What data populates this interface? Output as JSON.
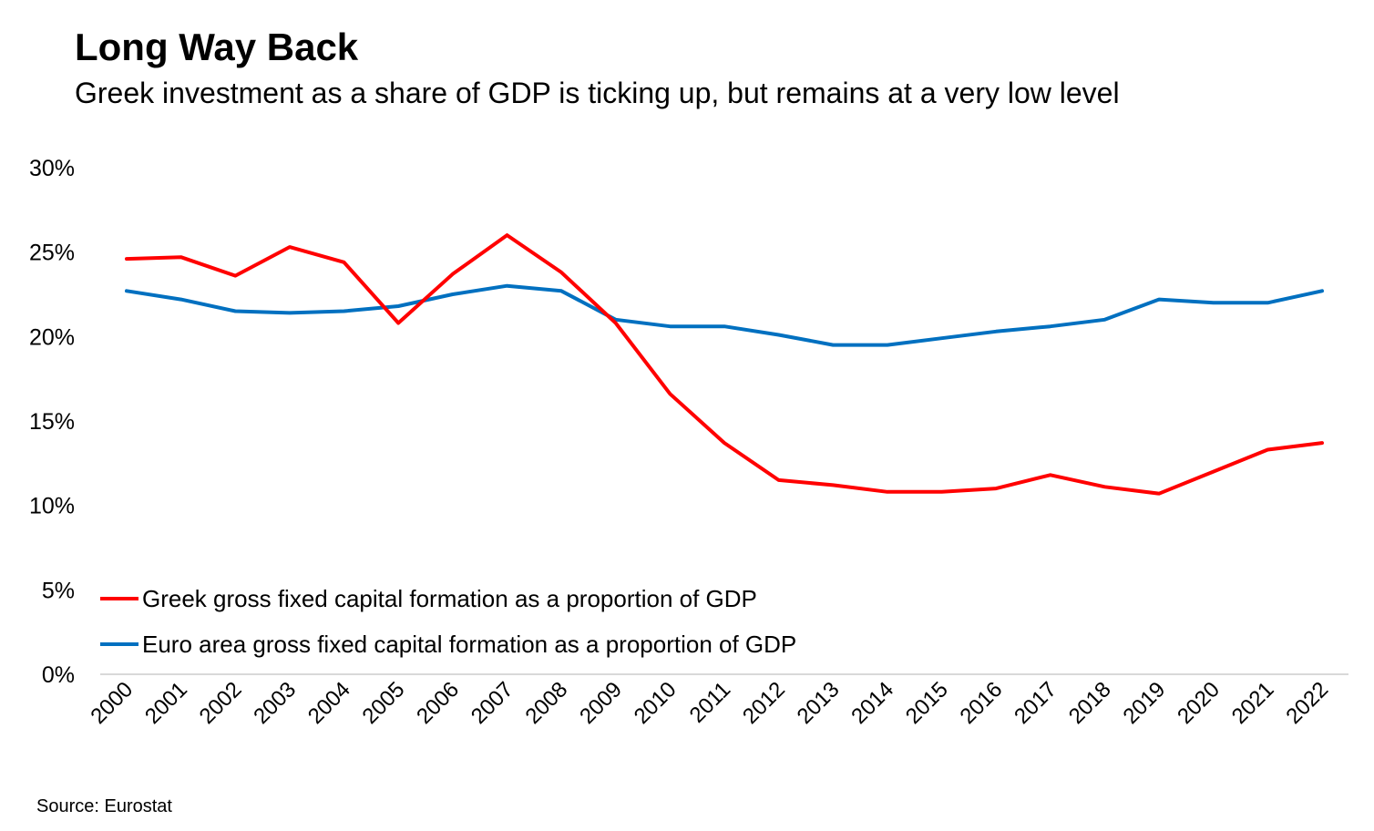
{
  "title": "Long Way Back",
  "subtitle": "Greek investment as a share of GDP is ticking up, but remains at a very low level",
  "source": "Source: Eurostat",
  "colors": {
    "greece": "#ff0000",
    "euro_area": "#0070c0",
    "axis": "#d9d9d9",
    "text": "#000000"
  },
  "chart_data": {
    "type": "line",
    "title": "Long Way Back",
    "subtitle": "Greek investment as a share of GDP is ticking up, but remains at a very low level",
    "xlabel": "",
    "ylabel": "",
    "x": [
      "2000",
      "2001",
      "2002",
      "2003",
      "2004",
      "2005",
      "2006",
      "2007",
      "2008",
      "2009",
      "2010",
      "2011",
      "2012",
      "2013",
      "2014",
      "2015",
      "2016",
      "2017",
      "2018",
      "2019",
      "2020",
      "2021",
      "2022"
    ],
    "ylim": [
      0,
      30
    ],
    "yticks": [
      0,
      5,
      10,
      15,
      20,
      25,
      30
    ],
    "ytick_labels": [
      "0%",
      "5%",
      "10%",
      "15%",
      "20%",
      "25%",
      "30%"
    ],
    "grid": false,
    "legend_position": "bottom-left",
    "series": [
      {
        "name": "Greek gross fixed capital formation as a proportion of GDP",
        "color": "#ff0000",
        "values": [
          24.6,
          24.7,
          23.6,
          25.3,
          24.4,
          20.8,
          23.7,
          26.0,
          23.8,
          20.8,
          16.6,
          13.7,
          11.5,
          11.2,
          10.8,
          10.8,
          11.0,
          11.8,
          11.1,
          10.7,
          12.0,
          13.3,
          13.7
        ]
      },
      {
        "name": "Euro area gross fixed capital formation as a proportion of GDP",
        "color": "#0070c0",
        "values": [
          22.7,
          22.2,
          21.5,
          21.4,
          21.5,
          21.8,
          22.5,
          23.0,
          22.7,
          21.0,
          20.6,
          20.6,
          20.1,
          19.5,
          19.5,
          19.9,
          20.3,
          20.6,
          21.0,
          22.2,
          22.0,
          22.0,
          22.7
        ]
      }
    ]
  }
}
